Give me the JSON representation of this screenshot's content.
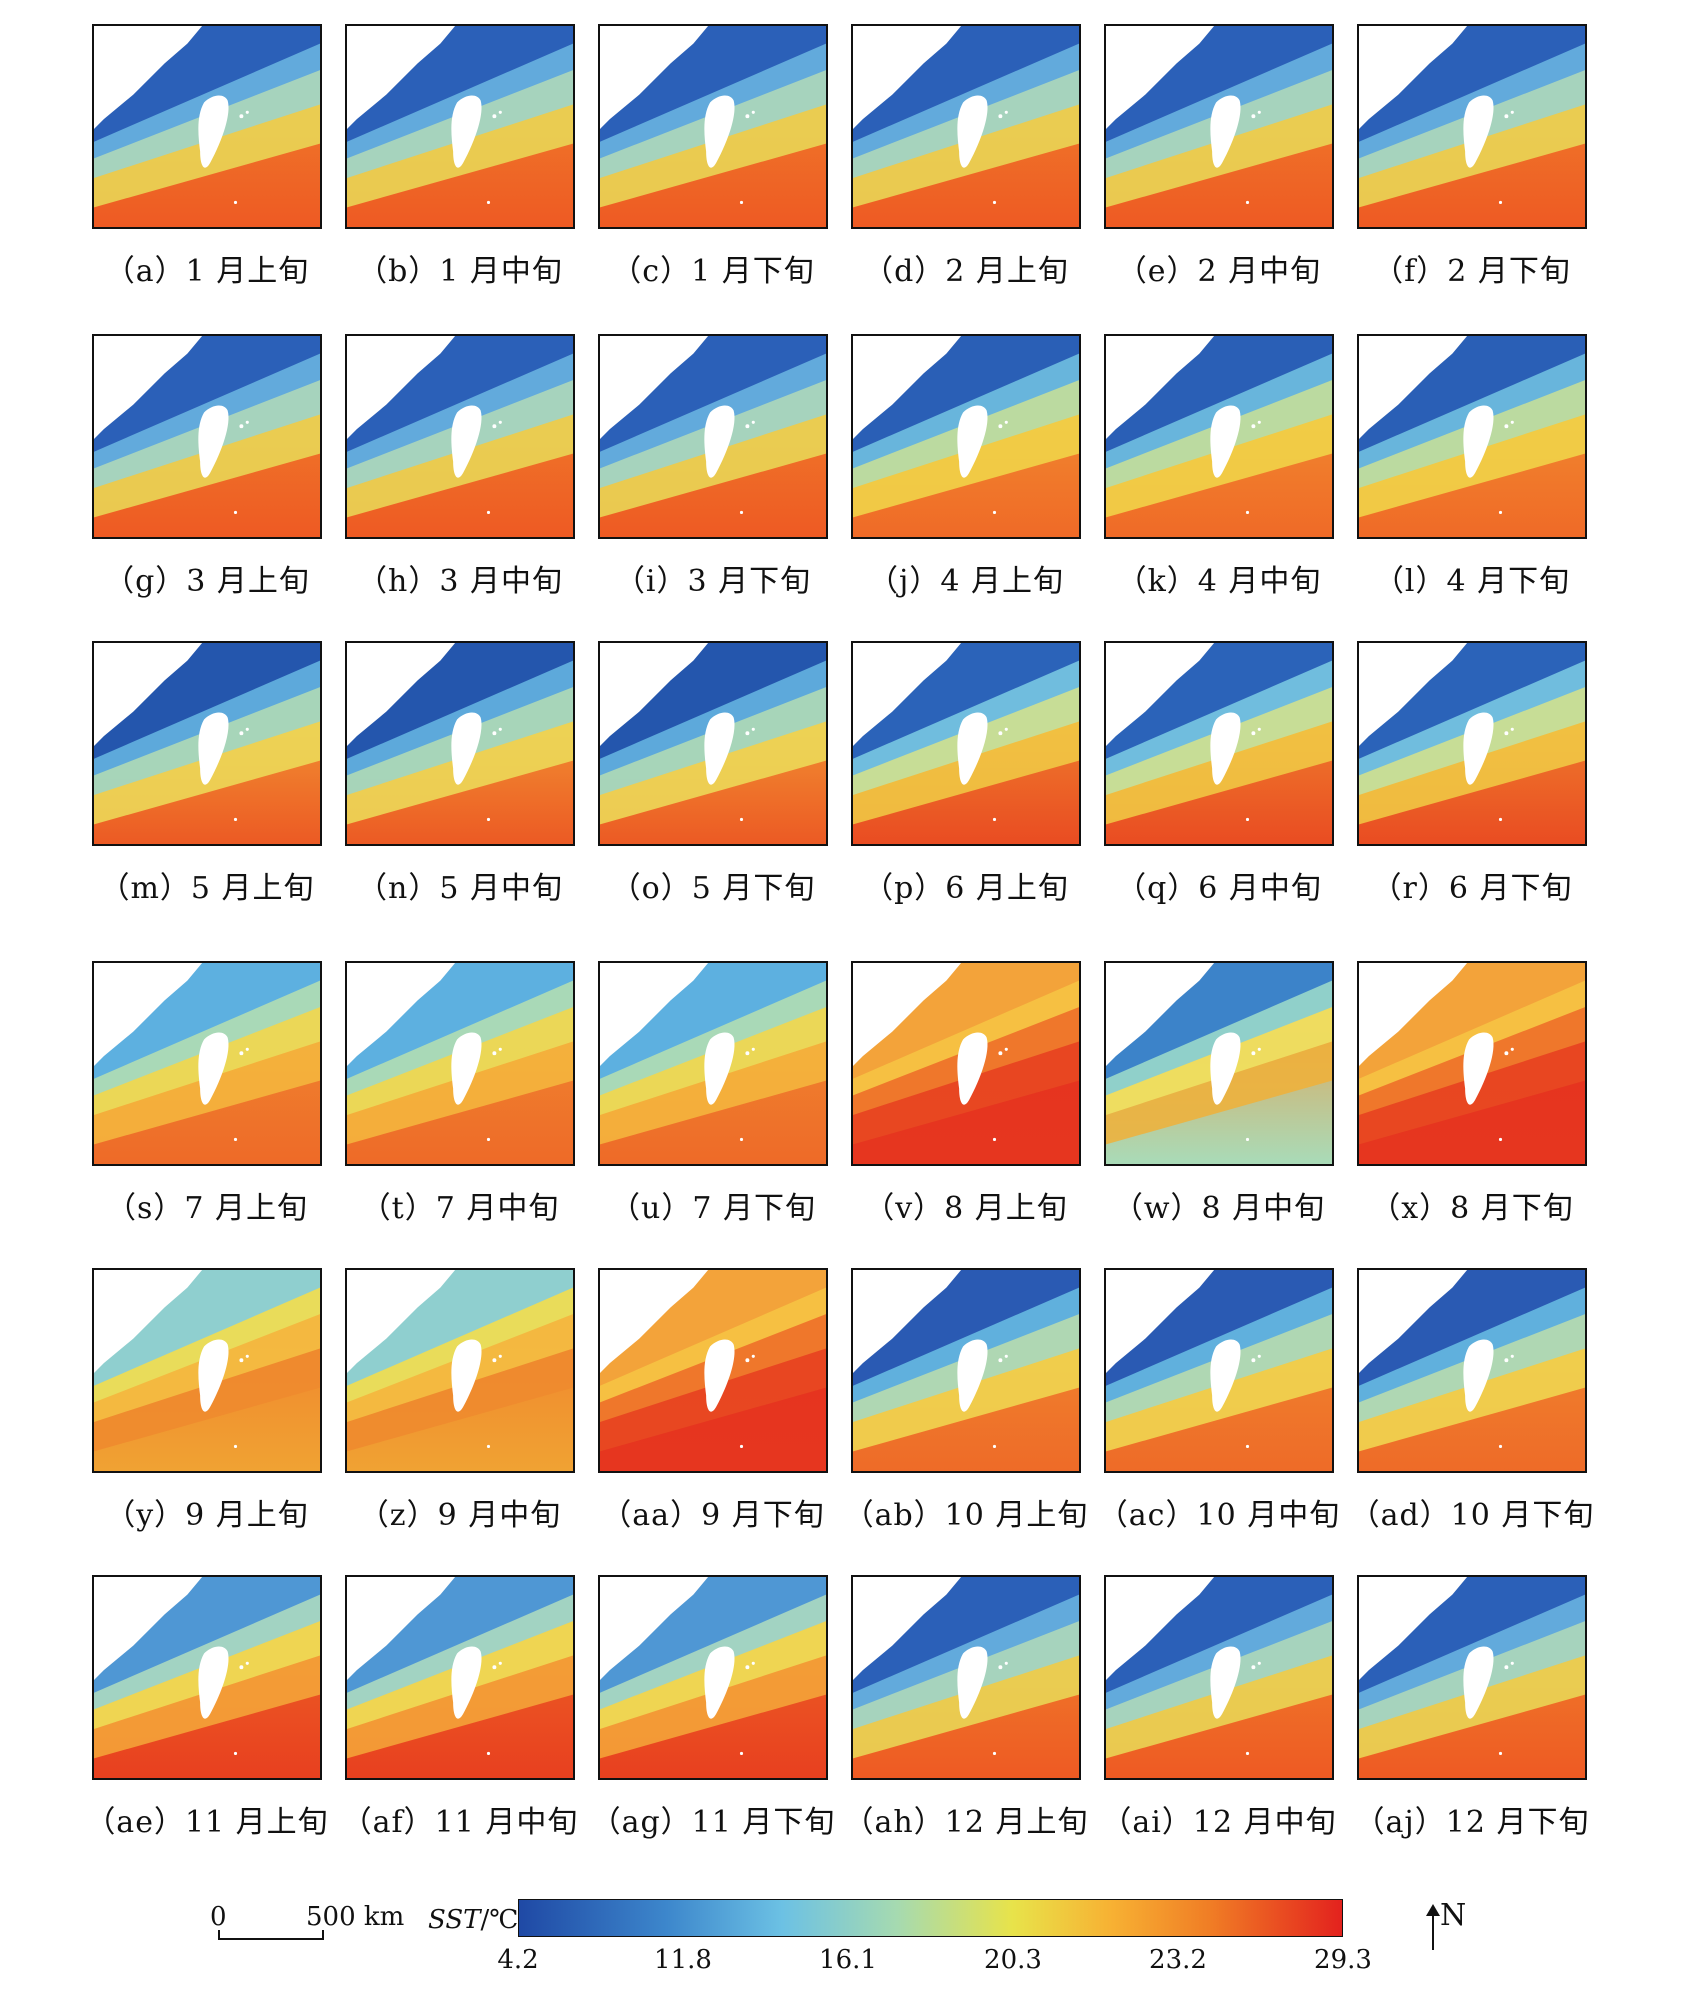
{
  "panels": [
    {
      "id": "a",
      "caption": "（a）1 月上旬",
      "scheme": "winter"
    },
    {
      "id": "b",
      "caption": "（b）1 月中旬",
      "scheme": "winter"
    },
    {
      "id": "c",
      "caption": "（c）1 月下旬",
      "scheme": "winter"
    },
    {
      "id": "d",
      "caption": "（d）2 月上旬",
      "scheme": "winter"
    },
    {
      "id": "e",
      "caption": "（e）2 月中旬",
      "scheme": "winter"
    },
    {
      "id": "f",
      "caption": "（f）2 月下旬",
      "scheme": "winter"
    },
    {
      "id": "g",
      "caption": "（g）3 月上旬",
      "scheme": "winter"
    },
    {
      "id": "h",
      "caption": "（h）3 月中旬",
      "scheme": "winter"
    },
    {
      "id": "i",
      "caption": "（i）3 月下旬",
      "scheme": "winter"
    },
    {
      "id": "j",
      "caption": "（j）4 月上旬",
      "scheme": "spring"
    },
    {
      "id": "k",
      "caption": "（k）4 月中旬",
      "scheme": "spring"
    },
    {
      "id": "l",
      "caption": "（l）4 月下旬",
      "scheme": "spring"
    },
    {
      "id": "m",
      "caption": "（m）5 月上旬",
      "scheme": "may"
    },
    {
      "id": "n",
      "caption": "（n）5 月中旬",
      "scheme": "may"
    },
    {
      "id": "o",
      "caption": "（o）5 月下旬",
      "scheme": "may"
    },
    {
      "id": "p",
      "caption": "（p）6 月上旬",
      "scheme": "june"
    },
    {
      "id": "q",
      "caption": "（q）6 月中旬",
      "scheme": "june"
    },
    {
      "id": "r",
      "caption": "（r）6 月下旬",
      "scheme": "june"
    },
    {
      "id": "s",
      "caption": "（s）7 月上旬",
      "scheme": "july"
    },
    {
      "id": "t",
      "caption": "（t）7 月中旬",
      "scheme": "july"
    },
    {
      "id": "u",
      "caption": "（u）7 月下旬",
      "scheme": "july"
    },
    {
      "id": "v",
      "caption": "（v）8 月上旬",
      "scheme": "hot"
    },
    {
      "id": "w",
      "caption": "（w）8 月中旬",
      "scheme": "mixed"
    },
    {
      "id": "x",
      "caption": "（x）8 月下旬",
      "scheme": "hot"
    },
    {
      "id": "y",
      "caption": "（y）9 月上旬",
      "scheme": "sept"
    },
    {
      "id": "z",
      "caption": "（z）9 月中旬",
      "scheme": "sept"
    },
    {
      "id": "aa",
      "caption": "（aa）9 月下旬",
      "scheme": "hot"
    },
    {
      "id": "ab",
      "caption": "（ab）10 月上旬",
      "scheme": "autumn"
    },
    {
      "id": "ac",
      "caption": "（ac）10 月中旬",
      "scheme": "autumn"
    },
    {
      "id": "ad",
      "caption": "（ad）10 月下旬",
      "scheme": "autumn"
    },
    {
      "id": "ae",
      "caption": "（ae）11 月上旬",
      "scheme": "nov"
    },
    {
      "id": "af",
      "caption": "（af）11 月中旬",
      "scheme": "nov"
    },
    {
      "id": "ag",
      "caption": "（ag）11 月下旬",
      "scheme": "nov"
    },
    {
      "id": "ah",
      "caption": "（ah）12 月上旬",
      "scheme": "winter"
    },
    {
      "id": "ai",
      "caption": "（ai）12 月中旬",
      "scheme": "winter"
    },
    {
      "id": "aj",
      "caption": "（aj）12 月下旬",
      "scheme": "winter"
    }
  ],
  "scale_bar": {
    "start_label": "0",
    "end_label": "500 km"
  },
  "colorbar": {
    "title": "SST",
    "unit": "/℃",
    "ticks": [
      "4.2",
      "11.8",
      "16.1",
      "20.3",
      "23.2",
      "29.3"
    ],
    "colors": {
      "min": "#1f49a5",
      "max": "#e3221e"
    }
  },
  "north_arrow": {
    "label": "N"
  }
}
